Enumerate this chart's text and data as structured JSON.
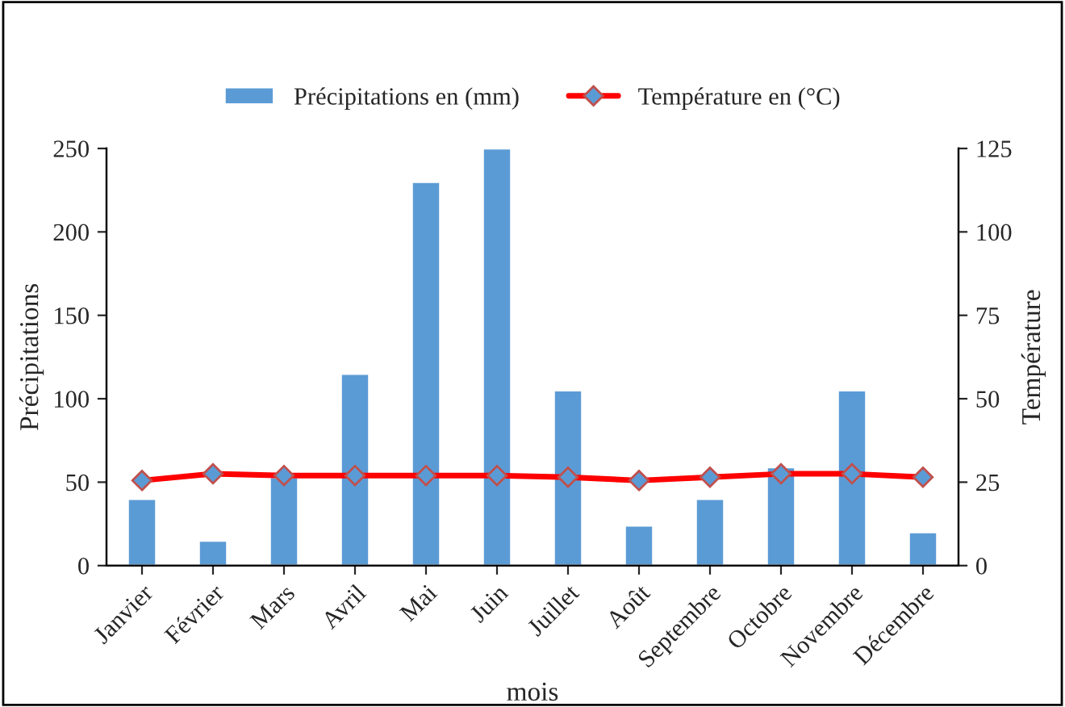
{
  "chart_data": {
    "type": "bar",
    "categories": [
      "Janvier",
      "Février",
      "Mars",
      "Avril",
      "Mai",
      "Juin",
      "Juillet",
      "Août",
      "Septembre",
      "Octobre",
      "Novembre",
      "Décembre"
    ],
    "series": [
      {
        "name": "Précipitations en (mm)",
        "color": "#5b9bd5",
        "values": [
          40,
          15,
          53,
          115,
          230,
          250,
          105,
          24,
          40,
          59,
          105,
          20
        ]
      },
      {
        "name": "Température en (°C)",
        "type": "line",
        "axis": "y2",
        "color": "#ff0000",
        "marker": "diamond",
        "values": [
          25.5,
          27.5,
          27,
          27,
          27,
          27,
          26.5,
          25.5,
          26.5,
          27.5,
          27.5,
          26.5
        ]
      }
    ],
    "xlabel": "mois",
    "ylabel": "Précipitations",
    "y2label": "Température",
    "ylim": [
      0,
      250
    ],
    "yticks": [
      0,
      50,
      100,
      150,
      200,
      250
    ],
    "y2lim": [
      0,
      125
    ],
    "y2ticks": [
      0,
      25,
      50,
      75,
      100,
      125
    ],
    "legend": "top",
    "grid": false
  }
}
